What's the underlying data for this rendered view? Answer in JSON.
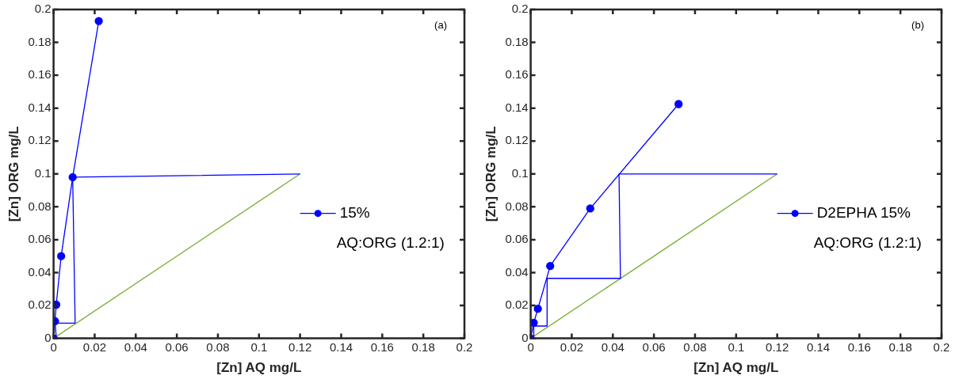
{
  "chart_data": [
    {
      "type": "line",
      "xlabel": "[Zn] AQ mg/L",
      "ylabel": "[Zn] ORG mg/L",
      "xlim": [
        0,
        0.2
      ],
      "ylim": [
        0,
        0.2
      ],
      "xticks": [
        0,
        0.02,
        0.04,
        0.06,
        0.08,
        0.1,
        0.12,
        0.14,
        0.16,
        0.18,
        0.2
      ],
      "yticks": [
        0,
        0.02,
        0.04,
        0.06,
        0.08,
        0.1,
        0.12,
        0.14,
        0.16,
        0.18,
        0.2
      ],
      "legend": "right",
      "grid": false,
      "annotations": [
        "(a)",
        "AQ:ORG (1.2:1)"
      ],
      "series": [
        {
          "name": "15%",
          "color": "#0000ff",
          "marker": "circle",
          "x": [
            0,
            0.0007,
            0.0013,
            0.0037,
            0.0093,
            0.022
          ],
          "values": [
            0,
            0.0105,
            0.0205,
            0.05,
            0.098,
            0.193
          ]
        },
        {
          "color": "#0000ff",
          "marker": "none",
          "x": [
            0.12,
            0.0093,
            0.0105,
            0.0007,
            0.0013,
            0
          ],
          "values": [
            0.1,
            0.098,
            0.0093,
            0.0093,
            0.0011,
            0
          ]
        },
        {
          "color": "#77ac30",
          "marker": "none",
          "x": [
            0,
            0.12
          ],
          "values": [
            0,
            0.1
          ]
        }
      ]
    },
    {
      "type": "line",
      "xlabel": "[Zn] AQ mg/L",
      "ylabel": "[Zn] ORG mg/L",
      "xlim": [
        0,
        0.2
      ],
      "ylim": [
        0,
        0.2
      ],
      "xticks": [
        0,
        0.02,
        0.04,
        0.06,
        0.08,
        0.1,
        0.12,
        0.14,
        0.16,
        0.18,
        0.2
      ],
      "yticks": [
        0,
        0.02,
        0.04,
        0.06,
        0.08,
        0.1,
        0.12,
        0.14,
        0.16,
        0.18,
        0.2
      ],
      "legend": "right",
      "grid": false,
      "annotations": [
        "(b)",
        "AQ:ORG (1.2:1)"
      ],
      "series": [
        {
          "name": "D2EPHA 15%",
          "color": "#0000ff",
          "marker": "circle",
          "x": [
            0,
            0.0015,
            0.0035,
            0.0095,
            0.029,
            0.072
          ],
          "values": [
            0,
            0.0095,
            0.018,
            0.044,
            0.079,
            0.1425
          ]
        },
        {
          "color": "#0000ff",
          "marker": "none",
          "x": [
            0.12,
            0.043,
            0.0437,
            0.008,
            0.008,
            0.0015,
            0.0015,
            0
          ],
          "values": [
            0.1,
            0.1,
            0.0365,
            0.0365,
            0.0075,
            0.0075,
            0.0012,
            0
          ]
        },
        {
          "color": "#77ac30",
          "marker": "none",
          "x": [
            0,
            0.12
          ],
          "values": [
            0,
            0.1
          ]
        }
      ]
    }
  ]
}
